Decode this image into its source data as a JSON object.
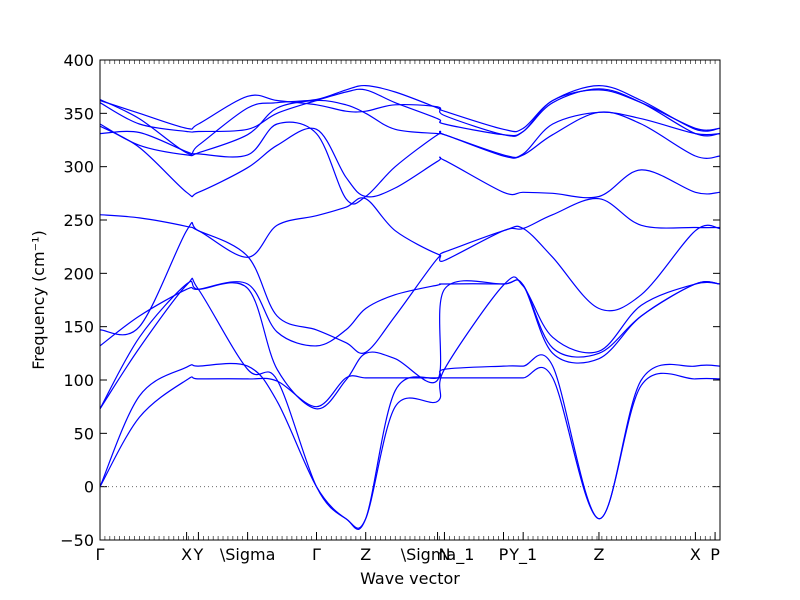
{
  "chart_data": {
    "type": "line",
    "title": "",
    "xlabel": "Wave vector",
    "ylabel": "Frequency (cm⁻¹)",
    "ylim": [
      -50,
      400
    ],
    "xlim": [
      0,
      6.3
    ],
    "y_ticks": [
      -50,
      0,
      50,
      100,
      150,
      200,
      250,
      300,
      350,
      400
    ],
    "y_tick_labels": [
      "−50",
      "0",
      "50",
      "100",
      "150",
      "200",
      "250",
      "300",
      "350",
      "400"
    ],
    "x_ticks": [
      {
        "x": 0.0,
        "label": "Γ"
      },
      {
        "x": 0.88,
        "label": "X"
      },
      {
        "x": 1.0,
        "label": "Y"
      },
      {
        "x": 1.5,
        "label": "\\Sigma"
      },
      {
        "x": 2.2,
        "label": "Γ"
      },
      {
        "x": 2.7,
        "label": "Z"
      },
      {
        "x": 3.43,
        "label": "\\Sigma_1"
      },
      {
        "x": 3.5,
        "label": "N"
      },
      {
        "x": 4.1,
        "label": "P"
      },
      {
        "x": 4.3,
        "label": "Y_1"
      },
      {
        "x": 5.07,
        "label": "Z"
      },
      {
        "x": 6.05,
        "label": "X"
      },
      {
        "x": 6.25,
        "label": "P"
      }
    ],
    "zero_line": 0,
    "series_color": "#0000ff",
    "series": [
      {
        "x": [
          0,
          0.4,
          0.88,
          1.0,
          1.5,
          1.8,
          2.2,
          2.5,
          2.7,
          3.0,
          3.43,
          3.5,
          4.1,
          4.3,
          4.6,
          5.07,
          5.5,
          6.05,
          6.3
        ],
        "y": [
          0,
          65,
          100,
          101,
          101,
          99,
          75,
          102,
          102,
          102,
          102,
          102,
          102,
          102,
          102,
          -30,
          95,
          101,
          101
        ]
      },
      {
        "x": [
          0,
          0.4,
          0.88,
          1.0,
          1.5,
          1.8,
          2.2,
          2.5,
          2.7,
          3.0,
          3.43,
          3.5,
          4.1,
          4.3,
          4.6,
          5.07,
          5.5,
          6.05,
          6.3
        ],
        "y": [
          0,
          85,
          112,
          113,
          113,
          80,
          0,
          -30,
          -30,
          90,
          102,
          110,
          113,
          113,
          113,
          -30,
          100,
          113,
          113
        ]
      },
      {
        "x": [
          0,
          0.4,
          0.88,
          1.0,
          1.5,
          1.8,
          2.2,
          2.5,
          2.7,
          3.0,
          3.43,
          3.5,
          4.1,
          4.3,
          4.6,
          5.07,
          5.5,
          6.05,
          6.3
        ],
        "y": [
          73,
          130,
          189,
          185,
          110,
          100,
          0,
          -30,
          -30,
          75,
          80,
          110,
          189,
          188,
          140,
          127,
          170,
          190,
          190
        ]
      },
      {
        "x": [
          0,
          0.4,
          0.88,
          1.0,
          1.5,
          1.8,
          2.2,
          2.5,
          2.7,
          3.0,
          3.43,
          3.5,
          4.1,
          4.3,
          4.6,
          5.07,
          5.5,
          6.05,
          6.3
        ],
        "y": [
          73,
          140,
          190,
          185,
          186,
          110,
          73,
          100,
          125,
          120,
          100,
          185,
          190,
          189,
          130,
          125,
          160,
          190,
          190
        ]
      },
      {
        "x": [
          0,
          0.4,
          0.88,
          1.0,
          1.5,
          1.8,
          2.2,
          2.5,
          2.7,
          3.0,
          3.43,
          3.5,
          4.1,
          4.3,
          4.6,
          5.07,
          5.5,
          6.05,
          6.3
        ],
        "y": [
          132,
          160,
          185,
          185,
          190,
          145,
          132,
          147,
          167,
          180,
          189,
          190,
          190,
          189,
          125,
          120,
          160,
          190,
          190
        ]
      },
      {
        "x": [
          0,
          0.4,
          0.88,
          1.0,
          1.5,
          1.8,
          2.2,
          2.5,
          2.7,
          3.0,
          3.43,
          3.5,
          4.1,
          4.3,
          4.6,
          5.07,
          5.5,
          6.05,
          6.3
        ],
        "y": [
          147,
          150,
          240,
          240,
          215,
          245,
          254,
          262,
          270,
          240,
          218,
          220,
          240,
          242,
          215,
          167,
          180,
          240,
          242
        ]
      },
      {
        "x": [
          0,
          0.4,
          0.88,
          1.0,
          1.5,
          1.8,
          2.2,
          2.5,
          2.7,
          3.0,
          3.43,
          3.5,
          4.1,
          4.3,
          4.6,
          5.07,
          5.5,
          6.05,
          6.3
        ],
        "y": [
          255,
          252,
          244,
          240,
          216,
          160,
          147,
          135,
          126,
          160,
          214,
          212,
          240,
          242,
          255,
          270,
          245,
          243,
          243
        ]
      },
      {
        "x": [
          0,
          0.4,
          0.88,
          1.0,
          1.5,
          1.8,
          2.2,
          2.5,
          2.7,
          3.0,
          3.43,
          3.5,
          4.1,
          4.3,
          4.6,
          5.07,
          5.5,
          6.05,
          6.3
        ],
        "y": [
          338,
          318,
          276,
          276,
          299,
          320,
          335,
          290,
          272,
          280,
          305,
          306,
          276,
          276,
          275,
          272,
          297,
          276,
          276
        ]
      },
      {
        "x": [
          0,
          0.4,
          0.88,
          1.0,
          1.5,
          1.8,
          2.2,
          2.5,
          2.7,
          3.0,
          3.43,
          3.5,
          4.1,
          4.3,
          4.6,
          5.07,
          5.5,
          6.05,
          6.3
        ],
        "y": [
          331,
          332,
          314,
          312,
          311,
          340,
          331,
          270,
          272,
          300,
          330,
          330,
          310,
          311,
          330,
          351,
          340,
          310,
          310
        ]
      },
      {
        "x": [
          0,
          0.4,
          0.88,
          1.0,
          1.5,
          1.8,
          2.2,
          2.5,
          2.7,
          3.0,
          3.43,
          3.5,
          4.1,
          4.3,
          4.6,
          5.07,
          5.5,
          6.05,
          6.3
        ],
        "y": [
          340,
          320,
          311,
          313,
          330,
          355,
          362,
          358,
          350,
          335,
          331,
          330,
          311,
          312,
          340,
          351,
          345,
          331,
          331
        ]
      },
      {
        "x": [
          0,
          0.4,
          0.88,
          1.0,
          1.5,
          1.8,
          2.2,
          2.5,
          2.7,
          3.0,
          3.43,
          3.5,
          4.1,
          4.3,
          4.6,
          5.07,
          5.5,
          6.05,
          6.3
        ],
        "y": [
          360,
          340,
          333,
          333,
          335,
          350,
          362,
          370,
          372,
          360,
          345,
          340,
          330,
          333,
          360,
          373,
          360,
          331,
          331
        ]
      },
      {
        "x": [
          0,
          0.4,
          0.88,
          1.0,
          1.5,
          1.8,
          2.2,
          2.5,
          2.7,
          3.0,
          3.43,
          3.5,
          4.1,
          4.3,
          4.6,
          5.07,
          5.5,
          6.05,
          6.3
        ],
        "y": [
          363,
          345,
          313,
          320,
          355,
          360,
          363,
          372,
          376,
          370,
          355,
          352,
          335,
          336,
          362,
          376,
          362,
          335,
          336
        ]
      },
      {
        "x": [
          0,
          0.4,
          0.88,
          1.0,
          1.5,
          1.8,
          2.2,
          2.5,
          2.7,
          3.0,
          3.43,
          3.5,
          4.1,
          4.3,
          4.6,
          5.07,
          5.5,
          6.05,
          6.3
        ],
        "y": [
          362,
          350,
          336,
          340,
          366,
          362,
          358,
          352,
          352,
          358,
          356,
          348,
          330,
          333,
          362,
          372,
          360,
          336,
          336
        ]
      }
    ]
  }
}
